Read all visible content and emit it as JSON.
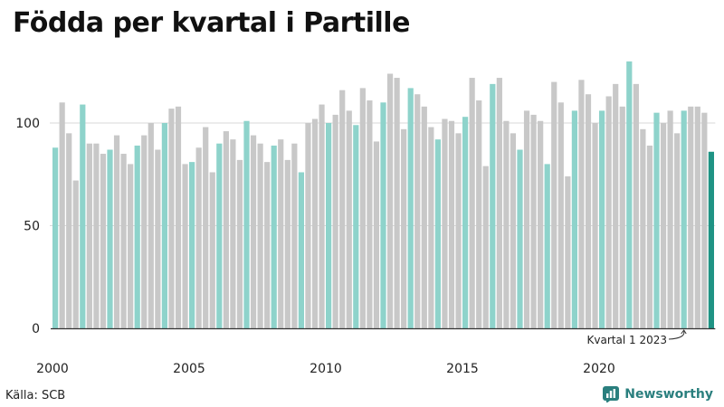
{
  "header": {
    "title": "Födda per kvartal i Partille"
  },
  "footer": {
    "source": "Källa: SCB",
    "brand": "Newsworthy"
  },
  "colors": {
    "q1": "#8ed3cb",
    "other": "#c8c8c8",
    "latest": "#1f9384",
    "baseline": "#333333",
    "grid": "#d9d9d9",
    "brand": "#2a7f7e"
  },
  "icons": {
    "brand": "bar-chart-badge-icon"
  },
  "chart_data": {
    "type": "bar",
    "title": "Födda per kvartal i Partille",
    "xlabel": "",
    "ylabel": "",
    "ylim": [
      0,
      135
    ],
    "yticks": [
      0,
      50,
      100
    ],
    "xticks": [
      "2000",
      "2005",
      "2010",
      "2015",
      "2020"
    ],
    "grid": true,
    "annotation": "Kvartal 1 2023",
    "start_year": 2000,
    "values": [
      88,
      110,
      95,
      72,
      109,
      90,
      90,
      85,
      87,
      94,
      85,
      80,
      89,
      94,
      100,
      87,
      100,
      107,
      108,
      80,
      81,
      88,
      98,
      76,
      90,
      96,
      92,
      82,
      101,
      94,
      90,
      81,
      89,
      92,
      82,
      90,
      76,
      100,
      102,
      109,
      100,
      104,
      116,
      106,
      99,
      117,
      111,
      91,
      110,
      124,
      122,
      97,
      117,
      114,
      108,
      98,
      92,
      102,
      101,
      95,
      103,
      122,
      111,
      79,
      119,
      122,
      101,
      95,
      87,
      106,
      104,
      101,
      80,
      120,
      110,
      74,
      106,
      121,
      114,
      100,
      106,
      113,
      119,
      108,
      130,
      119,
      97,
      89,
      105,
      100,
      106,
      95,
      106,
      108,
      108,
      105,
      86
    ]
  }
}
